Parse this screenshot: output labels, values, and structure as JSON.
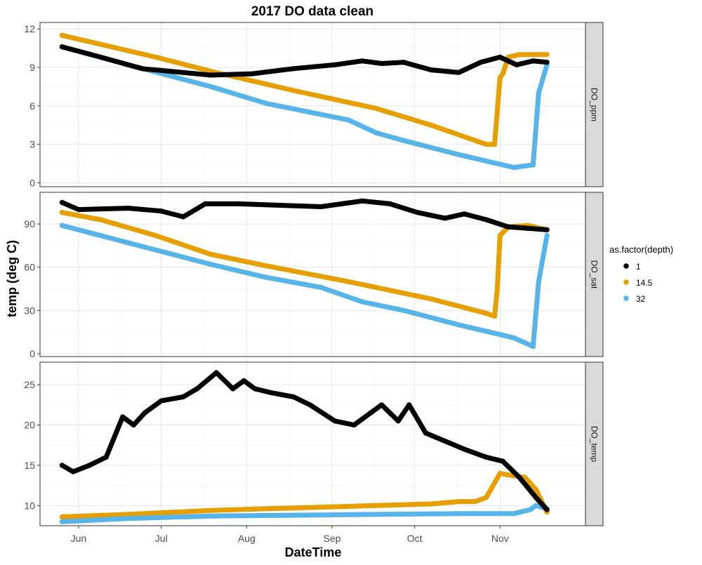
{
  "chart_data": {
    "type": "scatter",
    "title": "2017 DO data clean",
    "xlabel": "DateTime",
    "ylabel": "temp (deg C)",
    "x_ticks": [
      "Jun",
      "Jul",
      "Aug",
      "Sep",
      "Oct",
      "Nov"
    ],
    "x_tick_days": [
      152,
      182,
      213,
      244,
      274,
      305
    ],
    "xlim_day": [
      138,
      336
    ],
    "legend": {
      "title": "as.factor(depth)",
      "placement": "right",
      "entries": [
        "1",
        "14.5",
        "32"
      ]
    },
    "colors": {
      "1": "#000000",
      "14.5": "#E69F00",
      "32": "#56B4E9"
    },
    "grid": true,
    "panels": [
      {
        "strip": "DO_ppm",
        "ylim": [
          -0.3,
          12.5
        ],
        "y_ticks": [
          0,
          3,
          6,
          9,
          12
        ],
        "series": [
          {
            "name": "1",
            "x": [
              146,
              160,
              175,
              190,
              200,
              215,
              230,
              245,
              255,
              262,
              270,
              280,
              290,
              298,
              305,
              311,
              317,
              322
            ],
            "y": [
              10.6,
              9.8,
              8.9,
              8.6,
              8.4,
              8.5,
              8.9,
              9.2,
              9.5,
              9.3,
              9.4,
              8.8,
              8.6,
              9.4,
              9.8,
              9.2,
              9.5,
              9.4
            ]
          },
          {
            "name": "14.5",
            "x": [
              146,
              160,
              180,
              200,
              230,
              260,
              280,
              300,
              303,
              305,
              306,
              308,
              312,
              322
            ],
            "y": [
              11.5,
              10.8,
              9.8,
              8.7,
              7.2,
              5.8,
              4.5,
              3.0,
              3.0,
              8.2,
              8.5,
              9.8,
              10.0,
              10.0
            ]
          },
          {
            "name": "32",
            "x": [
              146,
              170,
              200,
              220,
              250,
              260,
              270,
              290,
              310,
              317,
              319,
              322
            ],
            "y": [
              10.6,
              9.2,
              7.5,
              6.2,
              4.9,
              3.9,
              3.3,
              2.2,
              1.2,
              1.4,
              7.0,
              9.2
            ]
          }
        ]
      },
      {
        "strip": "DO_sat",
        "ylim": [
          -2,
          112
        ],
        "y_ticks": [
          0,
          30,
          60,
          90
        ],
        "series": [
          {
            "name": "1",
            "x": [
              146,
              152,
              170,
              182,
              190,
              198,
              210,
              240,
              255,
              265,
              275,
              285,
              292,
              300,
              308,
              315,
              322
            ],
            "y": [
              105,
              100,
              101,
              99,
              95,
              104,
              104,
              102,
              106,
              104,
              98,
              94,
              97,
              93,
              88,
              87,
              86
            ]
          },
          {
            "name": "14.5",
            "x": [
              146,
              160,
              180,
              200,
              220,
              250,
              280,
              300,
              303,
              304,
              305,
              308,
              315,
              322
            ],
            "y": [
              98,
              93,
              82,
              69,
              61,
              50,
              38,
              28,
              26,
              45,
              82,
              88,
              89,
              86
            ]
          },
          {
            "name": "32",
            "x": [
              146,
              160,
              180,
              200,
              220,
              240,
              255,
              270,
              290,
              310,
              317,
              319,
              322
            ],
            "y": [
              89,
              82,
              72,
              62,
              53,
              46,
              36,
              30,
              20,
              11,
              5,
              50,
              82
            ]
          }
        ]
      },
      {
        "strip": "DO_temp",
        "ylim": [
          7.5,
          27.8
        ],
        "y_ticks": [
          10,
          15,
          20,
          25
        ],
        "series": [
          {
            "name": "1",
            "x": [
              146,
              150,
              156,
              162,
              168,
              172,
              176,
              182,
              190,
              195,
              202,
              208,
              212,
              216,
              222,
              230,
              236,
              245,
              252,
              258,
              262,
              268,
              272,
              278,
              285,
              292,
              300,
              306,
              312,
              318,
              322
            ],
            "y": [
              15.0,
              14.2,
              15.0,
              16.0,
              21.0,
              20.0,
              21.5,
              23.0,
              23.5,
              24.5,
              26.5,
              24.5,
              25.5,
              24.5,
              24.0,
              23.5,
              22.5,
              20.5,
              20.0,
              21.5,
              22.5,
              20.5,
              22.5,
              19.0,
              18.0,
              17.0,
              16.0,
              15.5,
              13.5,
              11.0,
              9.5
            ]
          },
          {
            "name": "14.5",
            "x": [
              146,
              170,
              200,
              230,
              260,
              280,
              290,
              296,
              300,
              305,
              308,
              314,
              318,
              322
            ],
            "y": [
              8.6,
              8.9,
              9.4,
              9.7,
              10.0,
              10.2,
              10.5,
              10.5,
              11.0,
              14.0,
              13.8,
              13.5,
              12.0,
              9.2
            ]
          },
          {
            "name": "32",
            "x": [
              146,
              170,
              200,
              230,
              260,
              290,
              310,
              316,
              318,
              322
            ],
            "y": [
              8.0,
              8.4,
              8.7,
              8.8,
              8.9,
              9.0,
              9.0,
              9.5,
              10.0,
              9.6
            ]
          }
        ]
      }
    ]
  }
}
